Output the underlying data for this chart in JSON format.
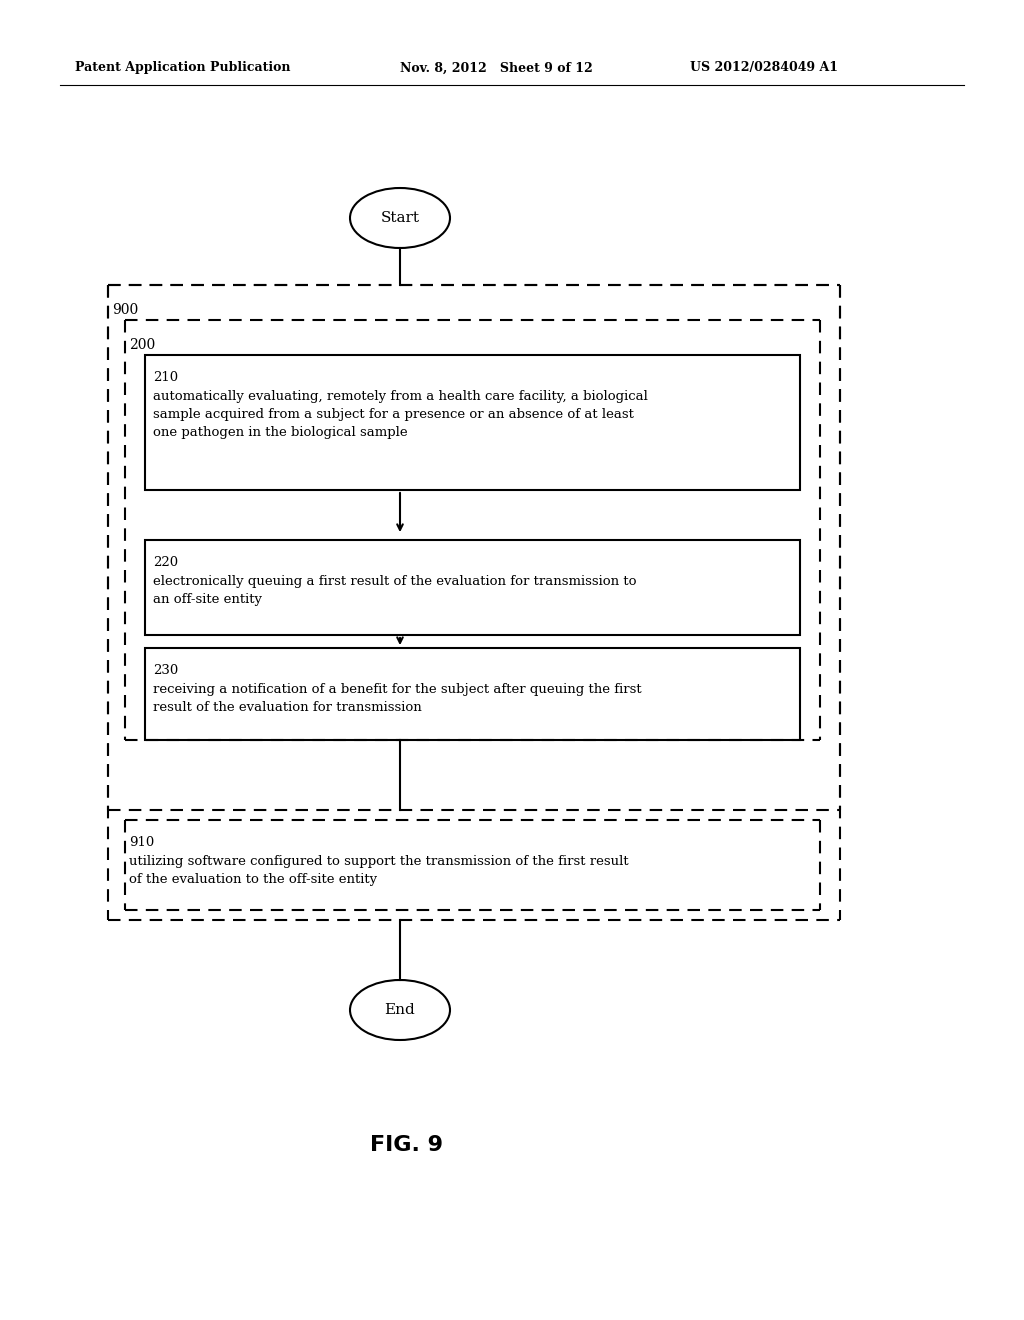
{
  "header_left": "Patent Application Publication",
  "header_mid": "Nov. 8, 2012   Sheet 9 of 12",
  "header_right": "US 2012/0284049 A1",
  "fig_label": "FIG. 9",
  "start_label": "Start",
  "end_label": "End",
  "box900_label": "900",
  "box200_label": "200",
  "box210_label": "210",
  "box210_text": "automatically evaluating, remotely from a health care facility, a biological\nsample acquired from a subject for a presence or an absence of at least\none pathogen in the biological sample",
  "box220_label": "220",
  "box220_text": "electronically queuing a first result of the evaluation for transmission to\nan off-site entity",
  "box230_label": "230",
  "box230_text": "receiving a notification of a benefit for the subject after queuing the first\nresult of the evaluation for transmission",
  "box910_label": "910",
  "box910_text": "utilizing software configured to support the transmission of the first result\nof the evaluation to the off-site entity",
  "bg_color": "#ffffff",
  "text_color": "#000000",
  "line_color": "#000000"
}
